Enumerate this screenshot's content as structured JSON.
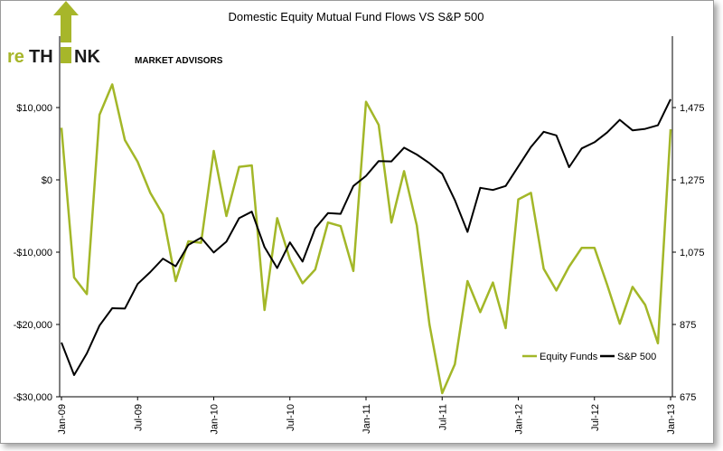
{
  "logo": {
    "part1": "re",
    "part2": "TH",
    "part3": "NK",
    "subtitle": "MARKET ADVISORS",
    "accent_color": "#a7b62a",
    "dark_color": "#1a1a1a",
    "icon": "arrow-up-icon"
  },
  "chart_data": {
    "type": "line",
    "title": "Domestic Equity Mutual Fund Flows VS S&P 500",
    "x": [
      "Jan-09",
      "Feb-09",
      "Mar-09",
      "Apr-09",
      "May-09",
      "Jun-09",
      "Jul-09",
      "Aug-09",
      "Sep-09",
      "Oct-09",
      "Nov-09",
      "Dec-09",
      "Jan-10",
      "Feb-10",
      "Mar-10",
      "Apr-10",
      "May-10",
      "Jun-10",
      "Jul-10",
      "Aug-10",
      "Sep-10",
      "Oct-10",
      "Nov-10",
      "Dec-10",
      "Jan-11",
      "Feb-11",
      "Mar-11",
      "Apr-11",
      "May-11",
      "Jun-11",
      "Jul-11",
      "Aug-11",
      "Sep-11",
      "Oct-11",
      "Nov-11",
      "Dec-11",
      "Jan-12",
      "Feb-12",
      "Mar-12",
      "Apr-12",
      "May-12",
      "Jun-12",
      "Jul-12",
      "Aug-12",
      "Sep-12",
      "Oct-12",
      "Nov-12",
      "Dec-12",
      "Jan-13"
    ],
    "x_tick_labels": [
      "Jan-09",
      "Jul-09",
      "Jan-10",
      "Jul-10",
      "Jan-11",
      "Jul-11",
      "Jan-12",
      "Jul-12",
      "Jan-13"
    ],
    "series": [
      {
        "name": "Equity Funds",
        "axis": "left",
        "color": "#a3b728",
        "values": [
          7200,
          -13500,
          -15800,
          9000,
          13200,
          5500,
          2500,
          -1800,
          -4800,
          -14000,
          -8500,
          -8700,
          4000,
          -5000,
          1800,
          2000,
          -18000,
          -5300,
          -11000,
          -14300,
          -12400,
          -5900,
          -6400,
          -12600,
          10800,
          7600,
          -5900,
          1200,
          -6300,
          -20000,
          -29500,
          -25500,
          -14000,
          -18300,
          -14200,
          -20500,
          -2700,
          -1800,
          -12300,
          -15300,
          -12000,
          -9400,
          -9400,
          -14500,
          -19900,
          -14800,
          -17300,
          -22600,
          7000
        ]
      },
      {
        "name": "S&P 500",
        "axis": "right",
        "color": "#000000",
        "values": [
          825,
          735,
          795,
          872,
          920,
          919,
          987,
          1020,
          1057,
          1036,
          1095,
          1115,
          1074,
          1104,
          1169,
          1187,
          1089,
          1031,
          1102,
          1049,
          1141,
          1183,
          1181,
          1258,
          1286,
          1327,
          1326,
          1364,
          1345,
          1321,
          1292,
          1219,
          1131,
          1253,
          1247,
          1258,
          1312,
          1366,
          1408,
          1398,
          1310,
          1362,
          1379,
          1406,
          1441,
          1412,
          1416,
          1426,
          1498
        ]
      }
    ],
    "y_left": {
      "min": -30000,
      "max": 20000,
      "ticks": [
        "$10,000",
        "$0",
        "-$10,000",
        "-$20,000",
        "-$30,000"
      ],
      "tick_values": [
        10000,
        0,
        -10000,
        -20000,
        -30000
      ]
    },
    "y_right": {
      "min": 675,
      "max": 1675,
      "ticks": [
        "1,475",
        "1,275",
        "1,075",
        "875",
        "675"
      ],
      "tick_values": [
        1475,
        1275,
        1075,
        875,
        675
      ]
    },
    "grid": false,
    "legend_position": "bottom-right"
  }
}
